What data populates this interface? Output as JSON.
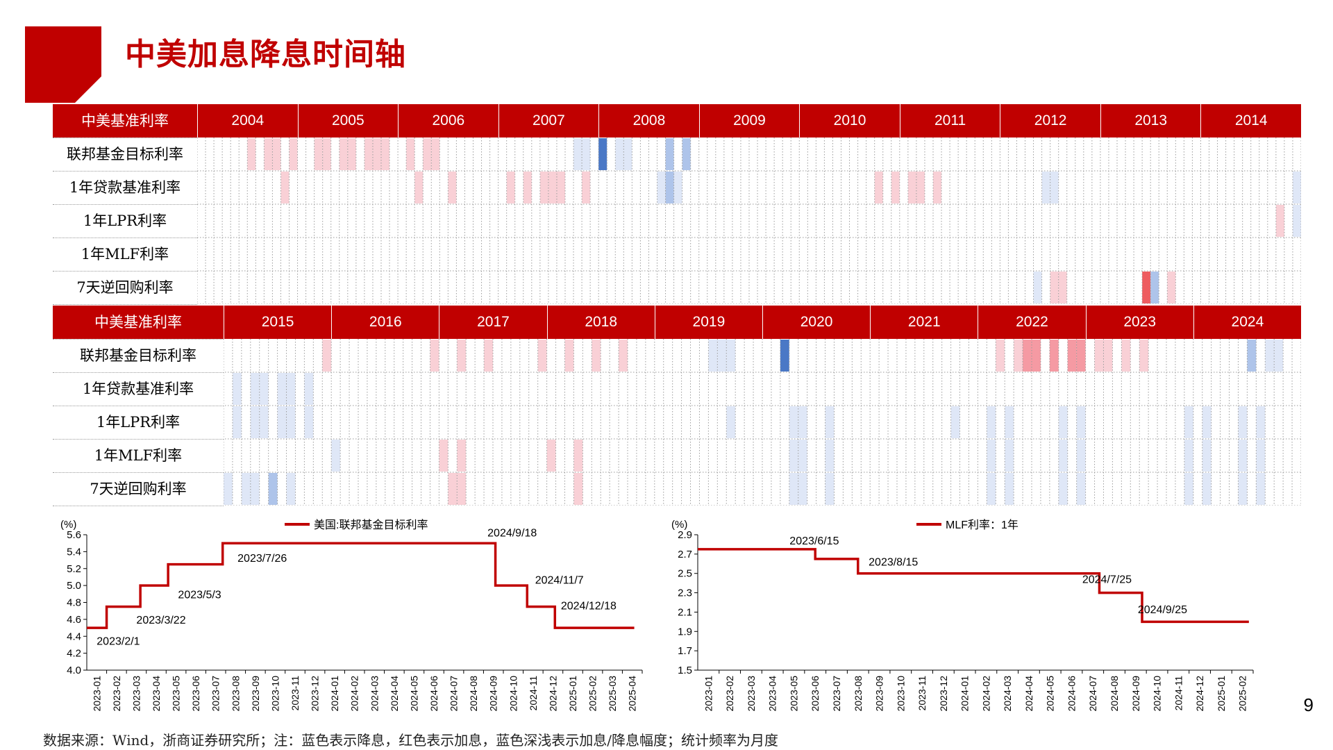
{
  "page": {
    "title": "中美加息降息时间轴",
    "page_number": "9",
    "footnote": "数据来源：Wind，浙商证券研究所；注：蓝色表示降息，红色表示加息，蓝色深浅表示加息/降息幅度；统计频率为月度"
  },
  "colors": {
    "brand": "#c00000",
    "hike_light": "#f9d0d6",
    "hike_mid": "#f59aa3",
    "hike_strong": "#ee5c60",
    "cut_light": "#dfe7f7",
    "cut_mid": "#aec4ea",
    "cut_strong": "#4a78c6"
  },
  "timeline": [
    {
      "header_label": "中美基准利率",
      "years": [
        "2004",
        "2005",
        "2006",
        "2007",
        "2008",
        "2009",
        "2010",
        "2011",
        "2012",
        "2013",
        "2014"
      ],
      "rows": [
        {
          "label": "联邦基金目标利率",
          "events": [
            [
              6,
              1
            ],
            [
              8,
              1
            ],
            [
              9,
              1
            ],
            [
              11,
              1
            ],
            [
              14,
              1
            ],
            [
              15,
              1
            ],
            [
              17,
              1
            ],
            [
              18,
              1
            ],
            [
              20,
              1
            ],
            [
              21,
              1
            ],
            [
              22,
              1
            ],
            [
              25,
              1
            ],
            [
              27,
              1
            ],
            [
              28,
              1
            ],
            [
              45,
              -1
            ],
            [
              46,
              -1
            ],
            [
              48,
              -3
            ],
            [
              50,
              -1
            ],
            [
              51,
              -1
            ],
            [
              56,
              -2
            ],
            [
              58,
              -2
            ]
          ]
        },
        {
          "label": "1年贷款基准利率",
          "events": [
            [
              10,
              1
            ],
            [
              26,
              1
            ],
            [
              30,
              1
            ],
            [
              37,
              1
            ],
            [
              39,
              1
            ],
            [
              41,
              1
            ],
            [
              42,
              1
            ],
            [
              43,
              1
            ],
            [
              46,
              1
            ],
            [
              55,
              -1
            ],
            [
              56,
              -2
            ],
            [
              57,
              -1
            ],
            [
              81,
              1
            ],
            [
              83,
              1
            ],
            [
              85,
              1
            ],
            [
              86,
              1
            ],
            [
              88,
              1
            ],
            [
              101,
              -1
            ],
            [
              102,
              -1
            ],
            [
              131,
              -1
            ]
          ]
        },
        {
          "label": "1年LPR利率",
          "events": [
            [
              129,
              1
            ],
            [
              131,
              -1
            ]
          ]
        },
        {
          "label": "1年MLF利率",
          "events": []
        },
        {
          "label": "7天逆回购利率",
          "events": [
            [
              100,
              -1
            ],
            [
              102,
              1
            ],
            [
              103,
              1
            ],
            [
              113,
              3
            ],
            [
              114,
              -2
            ],
            [
              116,
              1
            ]
          ]
        }
      ]
    },
    {
      "header_label": "中美基准利率",
      "years": [
        "2015",
        "2016",
        "2017",
        "2018",
        "2019",
        "2020",
        "2021",
        "2022",
        "2023",
        "2024"
      ],
      "rows": [
        {
          "label": "联邦基金目标利率",
          "events": [
            [
              11,
              1
            ],
            [
              23,
              1
            ],
            [
              26,
              1
            ],
            [
              29,
              1
            ],
            [
              35,
              1
            ],
            [
              38,
              1
            ],
            [
              41,
              1
            ],
            [
              44,
              1
            ],
            [
              54,
              -1
            ],
            [
              55,
              -1
            ],
            [
              56,
              -1
            ],
            [
              62,
              -3
            ],
            [
              86,
              1
            ],
            [
              88,
              1
            ],
            [
              89,
              2
            ],
            [
              90,
              2
            ],
            [
              92,
              2
            ],
            [
              94,
              2
            ],
            [
              95,
              2
            ],
            [
              97,
              1
            ],
            [
              98,
              1
            ],
            [
              100,
              1
            ],
            [
              102,
              1
            ],
            [
              114,
              -2
            ],
            [
              116,
              -1
            ],
            [
              117,
              -1
            ]
          ]
        },
        {
          "label": "1年贷款基准利率",
          "events": [
            [
              1,
              -1
            ],
            [
              3,
              -1
            ],
            [
              4,
              -1
            ],
            [
              6,
              -1
            ],
            [
              7,
              -1
            ],
            [
              9,
              -1
            ]
          ]
        },
        {
          "label": "1年LPR利率",
          "events": [
            [
              1,
              -1
            ],
            [
              3,
              -1
            ],
            [
              4,
              -1
            ],
            [
              6,
              -1
            ],
            [
              7,
              -1
            ],
            [
              9,
              -1
            ],
            [
              56,
              -1
            ],
            [
              63,
              -1
            ],
            [
              64,
              -1
            ],
            [
              67,
              -1
            ],
            [
              81,
              -1
            ],
            [
              85,
              -1
            ],
            [
              87,
              -1
            ],
            [
              93,
              -1
            ],
            [
              95,
              -1
            ],
            [
              107,
              -1
            ],
            [
              109,
              -1
            ],
            [
              113,
              -1
            ],
            [
              115,
              -1
            ]
          ]
        },
        {
          "label": "1年MLF利率",
          "events": [
            [
              12,
              -1
            ],
            [
              24,
              1
            ],
            [
              26,
              1
            ],
            [
              36,
              1
            ],
            [
              39,
              1
            ],
            [
              63,
              -1
            ],
            [
              64,
              -1
            ],
            [
              67,
              -1
            ],
            [
              85,
              -1
            ],
            [
              87,
              -1
            ],
            [
              93,
              -1
            ],
            [
              95,
              -1
            ],
            [
              107,
              -1
            ],
            [
              109,
              -1
            ],
            [
              113,
              -1
            ],
            [
              115,
              -1
            ]
          ]
        },
        {
          "label": "7天逆回购利率",
          "events": [
            [
              0,
              -1
            ],
            [
              2,
              -1
            ],
            [
              3,
              -1
            ],
            [
              5,
              -2
            ],
            [
              7,
              -1
            ],
            [
              25,
              1
            ],
            [
              26,
              1
            ],
            [
              39,
              1
            ],
            [
              63,
              -1
            ],
            [
              64,
              -1
            ],
            [
              67,
              -1
            ],
            [
              85,
              -1
            ],
            [
              87,
              -1
            ],
            [
              93,
              -1
            ],
            [
              95,
              -1
            ],
            [
              107,
              -1
            ],
            [
              109,
              -1
            ],
            [
              113,
              -1
            ],
            [
              115,
              -1
            ]
          ]
        }
      ]
    }
  ],
  "chart_data": [
    {
      "type": "line",
      "title": "",
      "unit_label": "(%)",
      "legend": "美国:联邦基金目标利率",
      "ylim": [
        4.0,
        5.6
      ],
      "yticks": [
        "4.0",
        "4.2",
        "4.4",
        "4.6",
        "4.8",
        "5.0",
        "5.2",
        "5.4",
        "5.6"
      ],
      "x": [
        "2023-01",
        "2023-02",
        "2023-03",
        "2023-04",
        "2023-05",
        "2023-06",
        "2023-07",
        "2023-08",
        "2023-09",
        "2023-10",
        "2023-11",
        "2023-12",
        "2024-01",
        "2024-02",
        "2024-03",
        "2024-04",
        "2024-05",
        "2024-06",
        "2024-07",
        "2024-08",
        "2024-09",
        "2024-10",
        "2024-11",
        "2024-12",
        "2025-01",
        "2025-02",
        "2025-03",
        "2025-04"
      ],
      "series": [
        {
          "name": "美国:联邦基金目标利率",
          "steps": [
            [
              0.0,
              4.5
            ],
            [
              1.0,
              4.75
            ],
            [
              2.7,
              5.0
            ],
            [
              4.1,
              5.25
            ],
            [
              6.85,
              5.5
            ],
            [
              20.6,
              5.0
            ],
            [
              22.2,
              4.75
            ],
            [
              23.6,
              4.5
            ],
            [
              27.6,
              4.5
            ]
          ]
        }
      ],
      "annotations": [
        {
          "text": "2023/2/1",
          "x": 0.5,
          "y": 4.3
        },
        {
          "text": "2023/3/22",
          "x": 2.5,
          "y": 4.55
        },
        {
          "text": "2023/5/3",
          "x": 4.6,
          "y": 4.85
        },
        {
          "text": "2023/7/26",
          "x": 7.6,
          "y": 5.28
        },
        {
          "text": "2024/9/18",
          "x": 20.2,
          "y": 5.58
        },
        {
          "text": "2024/11/7",
          "x": 22.6,
          "y": 5.02
        },
        {
          "text": "2024/12/18",
          "x": 23.9,
          "y": 4.72
        }
      ]
    },
    {
      "type": "line",
      "title": "",
      "unit_label": "(%)",
      "legend": "MLF利率：1年",
      "ylim": [
        1.5,
        2.9
      ],
      "yticks": [
        "1.5",
        "1.7",
        "1.9",
        "2.1",
        "2.3",
        "2.5",
        "2.7",
        "2.9"
      ],
      "x": [
        "2023-01",
        "2023-02",
        "2023-03",
        "2023-04",
        "2023-05",
        "2023-06",
        "2023-07",
        "2023-08",
        "2023-09",
        "2023-10",
        "2023-11",
        "2023-12",
        "2024-01",
        "2024-02",
        "2024-03",
        "2024-04",
        "2024-05",
        "2024-06",
        "2024-07",
        "2024-08",
        "2024-09",
        "2024-10",
        "2024-11",
        "2024-12",
        "2025-01",
        "2025-02"
      ],
      "series": [
        {
          "name": "MLF利率：1年",
          "steps": [
            [
              0.0,
              2.75
            ],
            [
              5.5,
              2.65
            ],
            [
              7.5,
              2.5
            ],
            [
              18.8,
              2.3
            ],
            [
              20.8,
              2.0
            ],
            [
              25.8,
              2.0
            ]
          ]
        }
      ],
      "annotations": [
        {
          "text": "2023/6/15",
          "x": 4.3,
          "y": 2.8
        },
        {
          "text": "2023/8/15",
          "x": 8.0,
          "y": 2.58
        },
        {
          "text": "2024/7/25",
          "x": 18.0,
          "y": 2.4
        },
        {
          "text": "2024/9/25",
          "x": 20.6,
          "y": 2.09
        }
      ]
    }
  ]
}
